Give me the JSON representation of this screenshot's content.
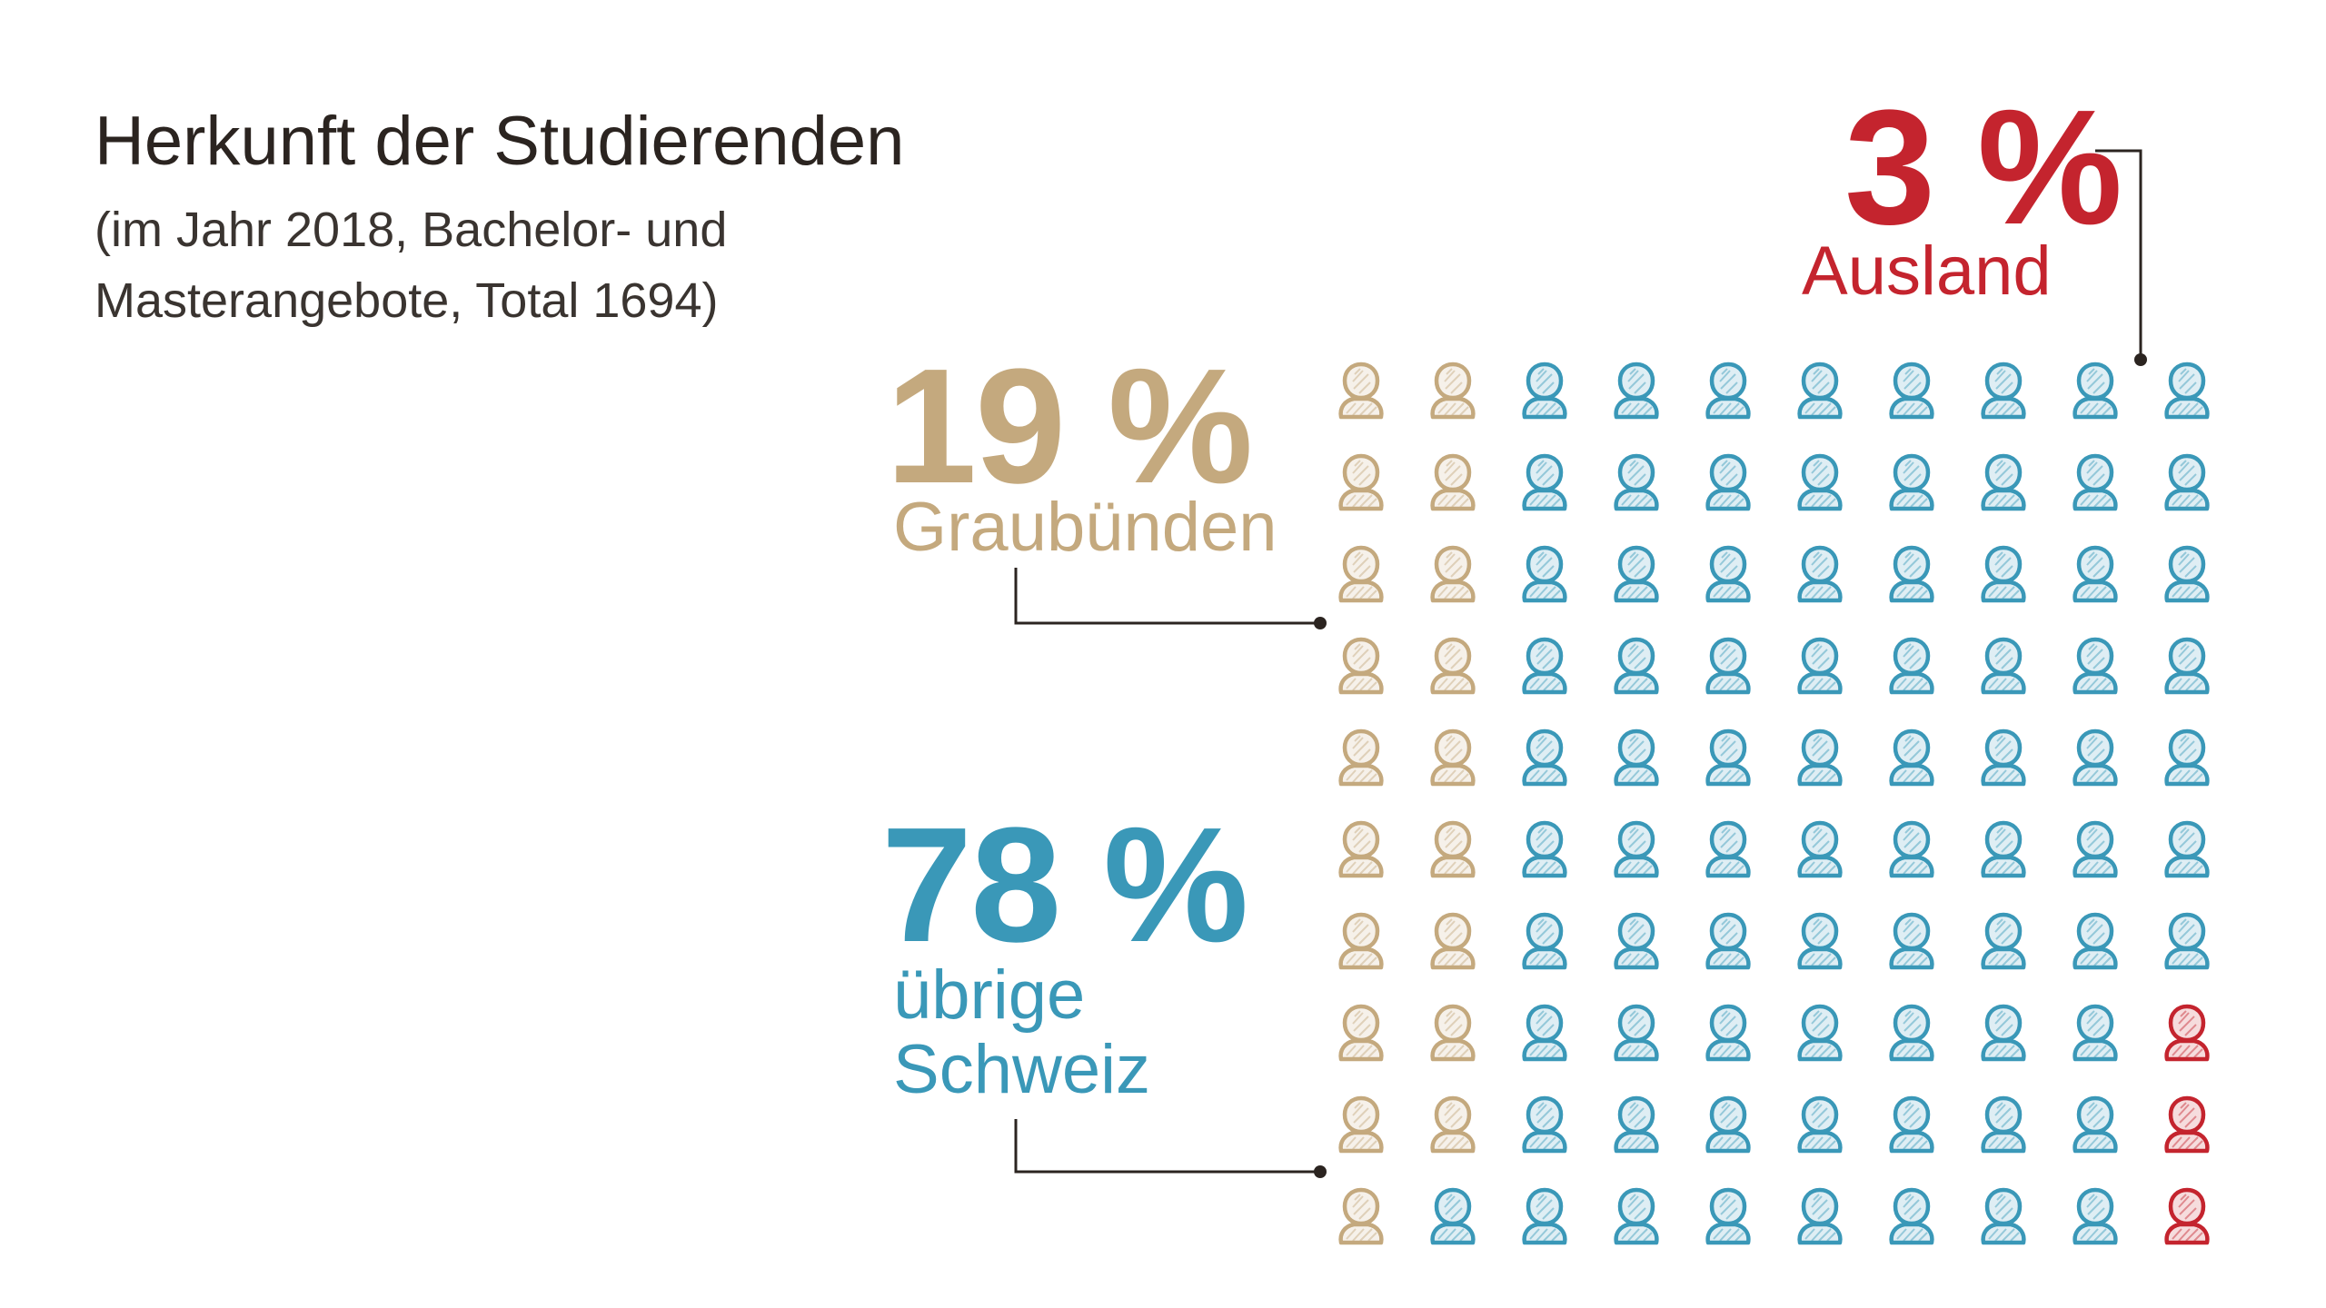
{
  "header": {
    "title": "Herkunft der Studierenden",
    "subtitle_line1": "(im Jahr 2018, Bachelor- und",
    "subtitle_line2": "Masterangebote, Total 1694)"
  },
  "colors": {
    "graubuenden": "#c4a97e",
    "schweiz": "#3a98b8",
    "ausland": "#c4242e",
    "connector": "#2b2420",
    "title": "#2b2420"
  },
  "chart_data": {
    "type": "waffle",
    "grid": {
      "rows": 10,
      "columns": 10
    },
    "fill_order": "column-major, left to right, top to bottom",
    "categories": [
      {
        "key": "graubuenden",
        "label": "Graubünden",
        "percent_label": "19 %",
        "value": 19,
        "icon_count": 19,
        "color": "#c4a97e"
      },
      {
        "key": "schweiz",
        "label": "übrige Schweiz",
        "label_line1": "übrige",
        "label_line2": "Schweiz",
        "percent_label": "78 %",
        "value": 78,
        "icon_count": 78,
        "color": "#3a98b8"
      },
      {
        "key": "ausland",
        "label": "Ausland",
        "percent_label": "3 %",
        "value": 3,
        "icon_count": 3,
        "color": "#c4242e"
      }
    ],
    "icon": "person-icon",
    "total": 1694
  }
}
